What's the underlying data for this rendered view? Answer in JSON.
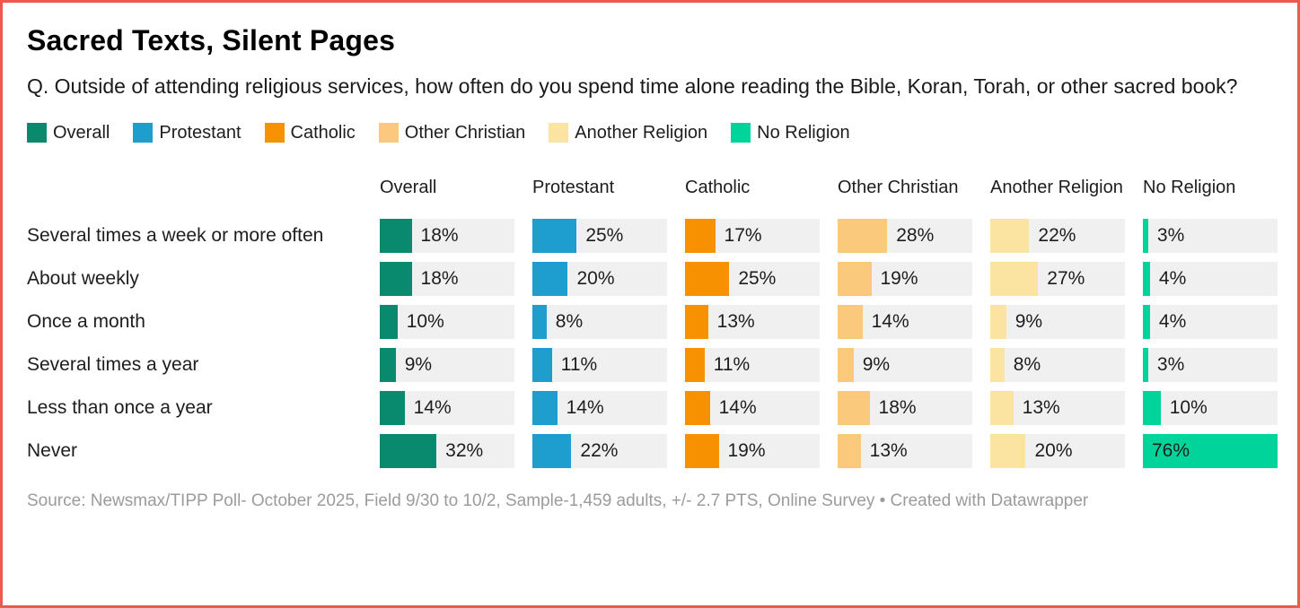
{
  "meta": {
    "title": "Sacred Texts, Silent Pages",
    "subtitle": "Q. Outside of attending religious services, how often do you spend time alone reading the Bible, Koran, Torah, or other sacred book?",
    "source_text": "Source: Newsmax/TIPP Poll- October 2025, Field 9/30 to 10/2, Sample-1,459 adults, +/- 2.7 PTS, Online Survey",
    "separator": "•",
    "attribution": "Created with Datawrapper"
  },
  "colors": {
    "frame_border": "#E85B4D",
    "bar_track": "#F0F0F0",
    "text_dark": "#1d1d1d",
    "text_muted": "#9B9B9B"
  },
  "chart_data": {
    "type": "bar",
    "title": "Sacred Texts, Silent Pages",
    "subtitle": "Q. Outside of attending religious services, how often do you spend time alone reading the Bible, Koran, Torah, or other sacred book?",
    "categories": [
      "Several times a week or more often",
      "About weekly",
      "Once a month",
      "Several times a year",
      "Less than once a year",
      "Never"
    ],
    "series": [
      {
        "name": "Overall",
        "color": "#098A6E",
        "values": [
          18,
          18,
          10,
          9,
          14,
          32
        ]
      },
      {
        "name": "Protestant",
        "color": "#1D9ECF",
        "values": [
          25,
          20,
          8,
          11,
          14,
          22
        ]
      },
      {
        "name": "Catholic",
        "color": "#F79102",
        "values": [
          17,
          25,
          13,
          11,
          14,
          19
        ]
      },
      {
        "name": "Other Christian",
        "color": "#FBC97C",
        "values": [
          28,
          19,
          14,
          9,
          18,
          13
        ]
      },
      {
        "name": "Another Religion",
        "color": "#FBE3A2",
        "values": [
          22,
          27,
          9,
          8,
          13,
          20
        ]
      },
      {
        "name": "No Religion",
        "color": "#00D49A",
        "values": [
          3,
          4,
          4,
          3,
          10,
          76
        ]
      }
    ],
    "value_suffix": "%",
    "scale_max": 76,
    "legend_position": "top",
    "grid": false,
    "orientation": "horizontal"
  }
}
